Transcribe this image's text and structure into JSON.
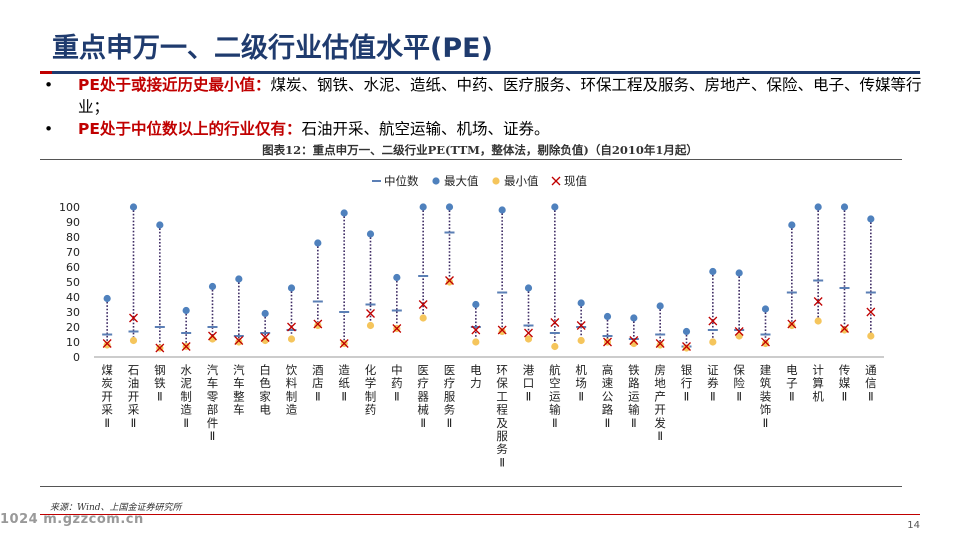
{
  "slide": {
    "title": "重点申万一、二级行业估值水平(PE)",
    "bullets": [
      {
        "dot": "•",
        "lead": "PE处于或接近历史最小值：",
        "text": "煤炭、钢铁、水泥、造纸、中药、医疗服务、环保工程及服务、房地产、保险、电子、传媒等行业；"
      },
      {
        "dot": "•",
        "lead": "PE处于中位数以上的行业仅有：",
        "text": "石油开采、航空运输、机场、证券。"
      }
    ],
    "figure_caption": "图表12：重点申万一、二级行业PE(TTM，整体法，剔除负值)（自2010年1月起）",
    "source": "来源：Wind、上国金证券研究所",
    "watermark": "1024 m.gzzcom.cn",
    "page_number": "14"
  },
  "colors": {
    "title": "#1f3b6e",
    "accent": "#c00000",
    "median": "#5b7fb5",
    "max": "#4f81bd",
    "min": "#f5c55c",
    "current": "#c00000",
    "range_line": "#3d2a63"
  },
  "chart_data": {
    "type": "scatter",
    "ylim": [
      0,
      100
    ],
    "yticks": [
      0,
      10,
      20,
      30,
      40,
      50,
      60,
      70,
      80,
      90,
      100
    ],
    "legend_position": "top",
    "legend": [
      "中位数",
      "最大值",
      "最小值",
      "现值"
    ],
    "categories": [
      "煤炭开采Ⅱ",
      "石油开采Ⅱ",
      "钢铁Ⅱ",
      "水泥制造Ⅱ",
      "汽车零部件Ⅱ",
      "汽车整车",
      "白色家电",
      "饮料制造",
      "酒店Ⅱ",
      "造纸Ⅱ",
      "化学制药",
      "中药Ⅱ",
      "医疗器械Ⅱ",
      "医疗服务Ⅱ",
      "电力",
      "环保工程及服务Ⅱ",
      "港口Ⅱ",
      "航空运输Ⅱ",
      "机场Ⅱ",
      "高速公路Ⅱ",
      "铁路运输Ⅱ",
      "房地产开发Ⅱ",
      "银行Ⅱ",
      "证券Ⅱ",
      "保险Ⅱ",
      "建筑装饰Ⅱ",
      "电子Ⅱ",
      "计算机",
      "传媒Ⅱ",
      "通信Ⅱ"
    ],
    "series": [
      {
        "name": "中位数",
        "values": [
          15,
          17,
          20,
          16,
          20,
          14,
          16,
          18,
          37,
          30,
          35,
          31,
          54,
          83,
          20,
          43,
          21,
          16,
          20,
          14,
          12,
          15,
          7,
          18,
          18,
          15,
          43,
          51,
          46,
          43
        ]
      },
      {
        "name": "最大值",
        "values": [
          39,
          100,
          88,
          31,
          47,
          52,
          29,
          46,
          76,
          96,
          82,
          53,
          100,
          100,
          35,
          98,
          46,
          100,
          36,
          27,
          26,
          34,
          17,
          57,
          56,
          32,
          88,
          100,
          100,
          92
        ]
      },
      {
        "name": "最小值",
        "values": [
          8,
          11,
          6,
          7,
          12,
          10,
          11,
          12,
          21,
          9,
          21,
          19,
          26,
          50,
          10,
          17,
          12,
          7,
          11,
          10,
          9,
          8,
          6,
          10,
          14,
          9,
          21,
          24,
          18,
          14
        ]
      },
      {
        "name": "现值",
        "values": [
          9,
          26,
          6,
          7,
          14,
          11,
          13,
          20,
          22,
          9,
          29,
          19,
          35,
          51,
          18,
          18,
          16,
          23,
          21,
          10,
          11,
          9,
          7,
          24,
          17,
          10,
          22,
          37,
          19,
          30
        ]
      }
    ]
  }
}
